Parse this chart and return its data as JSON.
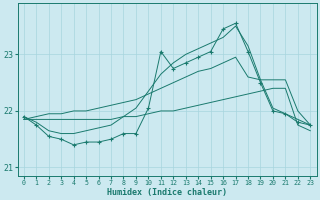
{
  "xlabel": "Humidex (Indice chaleur)",
  "bg_color": "#cce9f0",
  "grid_color": "#a8d5de",
  "line_color": "#1a7a6e",
  "x_values": [
    0,
    1,
    2,
    3,
    4,
    5,
    6,
    7,
    8,
    9,
    10,
    11,
    12,
    13,
    14,
    15,
    16,
    17,
    18,
    19,
    20,
    21,
    22,
    23
  ],
  "y_jagged": [
    21.9,
    21.75,
    21.55,
    21.5,
    21.4,
    21.45,
    21.45,
    21.5,
    21.6,
    21.6,
    22.05,
    23.05,
    22.75,
    22.85,
    22.95,
    23.05,
    23.45,
    23.55,
    23.05,
    22.5,
    22.0,
    21.95,
    21.8,
    21.75
  ],
  "y_upper": [
    21.9,
    21.8,
    21.65,
    21.6,
    21.6,
    21.65,
    21.7,
    21.75,
    21.9,
    22.05,
    22.35,
    22.65,
    22.85,
    23.0,
    23.1,
    23.2,
    23.3,
    23.5,
    23.15,
    22.55,
    22.05,
    21.95,
    21.85,
    21.75
  ],
  "y_mid": [
    21.85,
    21.9,
    21.95,
    21.95,
    22.0,
    22.0,
    22.05,
    22.1,
    22.15,
    22.2,
    22.3,
    22.4,
    22.5,
    22.6,
    22.7,
    22.75,
    22.85,
    22.95,
    22.6,
    22.55,
    22.55,
    22.55,
    22.0,
    21.75
  ],
  "y_lower": [
    21.85,
    21.85,
    21.85,
    21.85,
    21.85,
    21.85,
    21.85,
    21.85,
    21.9,
    21.9,
    21.95,
    22.0,
    22.0,
    22.05,
    22.1,
    22.15,
    22.2,
    22.25,
    22.3,
    22.35,
    22.4,
    22.4,
    21.75,
    21.65
  ],
  "ylim": [
    20.85,
    23.9
  ],
  "yticks": [
    21,
    22,
    23
  ],
  "xlim": [
    -0.5,
    23.5
  ],
  "xticks": [
    0,
    1,
    2,
    3,
    4,
    5,
    6,
    7,
    8,
    9,
    10,
    11,
    12,
    13,
    14,
    15,
    16,
    17,
    18,
    19,
    20,
    21,
    22,
    23
  ]
}
